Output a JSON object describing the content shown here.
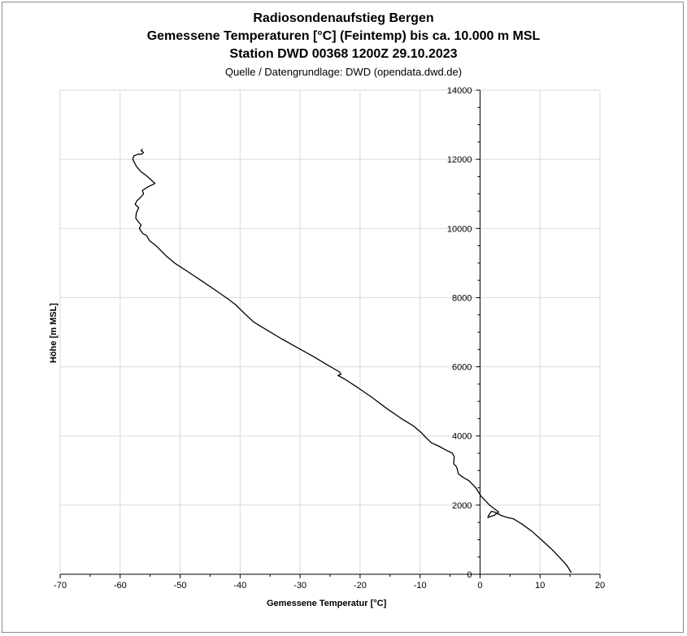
{
  "chart_data": {
    "type": "line",
    "title": "Radiosondenaufstieg Bergen",
    "title_line2": "Gemessene Temperaturen [°C] (Feintemp) bis ca. 10.000 m MSL",
    "title_line3": "Station DWD 00368 1200Z 29.10.2023",
    "subtitle": "Quelle / Datengrundlage: DWD (opendata.dwd.de)",
    "xlabel": "Gemessene Temperatur [°C]",
    "ylabel": "Höhe [m MSL]",
    "xlim": [
      -70,
      20
    ],
    "ylim": [
      0,
      14000
    ],
    "xticks": [
      -70,
      -60,
      -50,
      -40,
      -30,
      -20,
      -10,
      0,
      10,
      20
    ],
    "yticks": [
      0,
      2000,
      4000,
      6000,
      8000,
      10000,
      12000,
      14000
    ],
    "grid": true,
    "line_color": "#000000",
    "series": [
      {
        "x": [
          15.2,
          14.5,
          13.2,
          11.8,
          10.2,
          8.6,
          7.0,
          5.6,
          4.4,
          3.5,
          3.0,
          2.4,
          1.9,
          1.5,
          1.3,
          1.6,
          2.4,
          3.1,
          1.6,
          0.2,
          -0.7,
          -1.8,
          -2.8,
          -3.6,
          -3.9,
          -4.4,
          -4.3,
          -4.6,
          -5.8,
          -6.8,
          -8.1,
          -9.0,
          -9.8,
          -11.2,
          -13.1,
          -15.6,
          -17.9,
          -20.4,
          -22.6,
          -23.7,
          -23.2,
          -23.4,
          -25.4,
          -27.8,
          -30.4,
          -33.0,
          -35.4,
          -37.8,
          -39.6,
          -40.8,
          -41.9,
          -44.0,
          -46.1,
          -48.7,
          -50.9,
          -52.3,
          -54.0,
          -55.1,
          -55.6,
          -56.2,
          -56.8,
          -56.5,
          -57.0,
          -57.4,
          -57.3,
          -56.9,
          -57.5,
          -57.2,
          -56.6,
          -56.1,
          -56.3,
          -55.4,
          -54.2,
          -55.1,
          -55.8,
          -56.6,
          -57.3,
          -57.9,
          -57.7,
          -57.0,
          -56.4,
          -56.1,
          -56.5,
          -56.3
        ],
        "y": [
          50,
          250,
          500,
          750,
          1000,
          1250,
          1450,
          1600,
          1650,
          1700,
          1750,
          1800,
          1820,
          1720,
          1640,
          1660,
          1710,
          1800,
          2000,
          2250,
          2500,
          2700,
          2800,
          2900,
          3100,
          3200,
          3400,
          3500,
          3600,
          3700,
          3800,
          3950,
          4100,
          4300,
          4500,
          4800,
          5100,
          5400,
          5650,
          5750,
          5780,
          5850,
          6050,
          6300,
          6550,
          6800,
          7050,
          7300,
          7600,
          7800,
          7950,
          8200,
          8450,
          8750,
          9000,
          9200,
          9500,
          9650,
          9800,
          9850,
          10000,
          10100,
          10200,
          10300,
          10450,
          10600,
          10700,
          10800,
          10900,
          11000,
          11100,
          11200,
          11300,
          11450,
          11550,
          11650,
          11800,
          12000,
          12100,
          12150,
          12150,
          12200,
          12250,
          12300
        ]
      }
    ]
  }
}
